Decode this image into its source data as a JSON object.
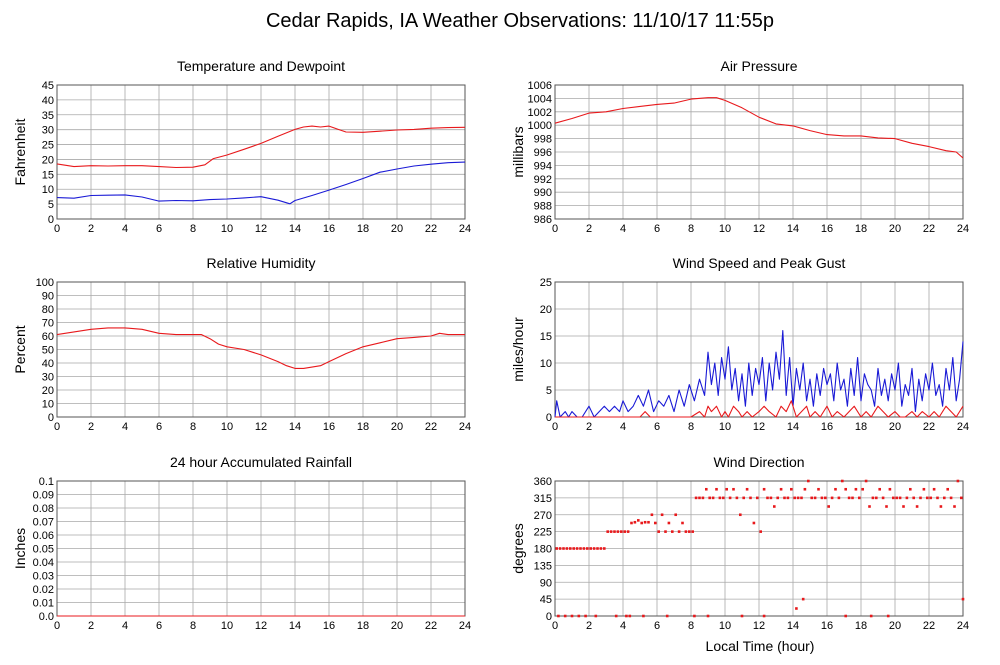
{
  "title": "Cedar Rapids, IA Weather Observations: 11/10/17 11:55p",
  "x_axis_label": "Local Time (hour)",
  "colors": {
    "red": "#e8191c",
    "blue": "#1a1ad6",
    "grid": "#a9a9a9",
    "frame": "#555555"
  },
  "chart_data": [
    {
      "type": "line",
      "title": "Temperature and Dewpoint",
      "ylabel": "Fahrenheit",
      "xlim": [
        0,
        24
      ],
      "ylim": [
        0,
        45
      ],
      "xticks": [
        0,
        2,
        4,
        6,
        8,
        10,
        12,
        14,
        16,
        18,
        20,
        22,
        24
      ],
      "yticks": [
        0,
        5,
        10,
        15,
        20,
        25,
        30,
        35,
        40,
        45
      ],
      "grid": true,
      "series": [
        {
          "color": "#e8191c",
          "x": [
            0,
            1,
            2,
            3,
            4,
            5,
            6,
            7,
            8,
            8.7,
            9.2,
            10,
            11,
            12,
            13,
            14,
            14.5,
            15,
            15.5,
            16,
            16.5,
            17,
            18,
            19,
            20,
            21,
            22,
            23,
            24
          ],
          "y": [
            18.5,
            17.6,
            17.9,
            17.8,
            17.9,
            17.9,
            17.6,
            17.3,
            17.4,
            18.2,
            20.3,
            21.5,
            23.4,
            25.4,
            27.8,
            30.1,
            30.9,
            31.2,
            30.9,
            31.2,
            30.2,
            29.2,
            29.1,
            29.5,
            29.9,
            30.1,
            30.5,
            30.7,
            30.8
          ]
        },
        {
          "color": "#1a1ad6",
          "x": [
            0,
            1,
            2,
            3,
            4,
            5,
            6,
            7,
            8,
            9,
            10,
            11,
            12,
            13,
            13.7,
            14,
            15,
            16,
            17,
            18,
            19,
            20,
            21,
            22,
            23,
            24
          ],
          "y": [
            7.2,
            7.0,
            7.9,
            8.0,
            8.1,
            7.4,
            6.0,
            6.2,
            6.1,
            6.5,
            6.7,
            7.1,
            7.5,
            6.3,
            5.1,
            6.2,
            7.9,
            9.7,
            11.6,
            13.6,
            15.7,
            16.8,
            17.8,
            18.4,
            18.9,
            19.1
          ]
        }
      ]
    },
    {
      "type": "line",
      "title": "Air Pressure",
      "ylabel": "millibars",
      "xlim": [
        0,
        24
      ],
      "ylim": [
        986,
        1006
      ],
      "xticks": [
        0,
        2,
        4,
        6,
        8,
        10,
        12,
        14,
        16,
        18,
        20,
        22,
        24
      ],
      "yticks": [
        986,
        988,
        990,
        992,
        994,
        996,
        998,
        1000,
        1002,
        1004,
        1006
      ],
      "grid": true,
      "series": [
        {
          "color": "#e8191c",
          "x": [
            0,
            1,
            2,
            3,
            4,
            5,
            6,
            7,
            8,
            9,
            9.5,
            10,
            11,
            12,
            13,
            14,
            15,
            16,
            17,
            18,
            19,
            20,
            21,
            22,
            23,
            23.6,
            24
          ],
          "y": [
            1000.3,
            1001.0,
            1001.8,
            1002.0,
            1002.5,
            1002.8,
            1003.1,
            1003.3,
            1003.9,
            1004.1,
            1004.1,
            1003.7,
            1002.6,
            1001.2,
            1000.2,
            999.9,
            999.2,
            998.6,
            998.4,
            998.4,
            998.1,
            998.0,
            997.3,
            996.8,
            996.2,
            996.0,
            995.1
          ]
        }
      ]
    },
    {
      "type": "line",
      "title": "Relative Humidity",
      "ylabel": "Percent",
      "xlim": [
        0,
        24
      ],
      "ylim": [
        0,
        100
      ],
      "xticks": [
        0,
        2,
        4,
        6,
        8,
        10,
        12,
        14,
        16,
        18,
        20,
        22,
        24
      ],
      "yticks": [
        0,
        10,
        20,
        30,
        40,
        50,
        60,
        70,
        80,
        90,
        100
      ],
      "grid": true,
      "series": [
        {
          "color": "#e8191c",
          "x": [
            0,
            1,
            2,
            3,
            4,
            5,
            6,
            7,
            8,
            8.5,
            9,
            9.5,
            10,
            11,
            12,
            13,
            13.5,
            14,
            14.5,
            15,
            15.5,
            16,
            17,
            18,
            19,
            20,
            21,
            22,
            22.5,
            23,
            24
          ],
          "y": [
            61,
            63,
            65,
            66,
            66,
            65,
            62,
            61,
            61,
            61,
            58,
            54,
            52,
            50,
            46,
            41,
            38,
            36,
            36,
            37,
            38,
            41,
            47,
            52,
            55,
            58,
            59,
            60,
            62,
            61,
            61
          ]
        }
      ]
    },
    {
      "type": "line",
      "title": "Wind Speed and Peak Gust",
      "ylabel": "miles/hour",
      "xlim": [
        0,
        24
      ],
      "ylim": [
        0,
        25
      ],
      "xticks": [
        0,
        2,
        4,
        6,
        8,
        10,
        12,
        14,
        16,
        18,
        20,
        22,
        24
      ],
      "yticks": [
        0,
        5,
        10,
        15,
        20,
        25
      ],
      "grid": true,
      "series": [
        {
          "color": "#1a1ad6",
          "x": [
            0,
            0.1,
            0.3,
            0.6,
            0.8,
            1.0,
            1.3,
            1.6,
            2.0,
            2.3,
            2.6,
            2.9,
            3.2,
            3.5,
            3.8,
            4.0,
            4.3,
            4.6,
            4.9,
            5.2,
            5.5,
            5.8,
            6.1,
            6.4,
            6.7,
            7.0,
            7.3,
            7.6,
            7.9,
            8.2,
            8.5,
            8.8,
            9.0,
            9.2,
            9.4,
            9.6,
            9.8,
            10.0,
            10.2,
            10.4,
            10.6,
            10.8,
            11.0,
            11.2,
            11.4,
            11.6,
            11.8,
            12.0,
            12.2,
            12.4,
            12.6,
            12.8,
            13.0,
            13.2,
            13.4,
            13.6,
            13.8,
            14.0,
            14.2,
            14.4,
            14.6,
            14.8,
            15.0,
            15.2,
            15.4,
            15.6,
            15.8,
            16.0,
            16.2,
            16.4,
            16.6,
            16.8,
            17.0,
            17.2,
            17.4,
            17.6,
            17.8,
            18.0,
            18.2,
            18.4,
            18.6,
            18.8,
            19.0,
            19.2,
            19.4,
            19.6,
            19.8,
            20.0,
            20.2,
            20.4,
            20.6,
            20.8,
            21.0,
            21.2,
            21.4,
            21.6,
            21.8,
            22.0,
            22.2,
            22.4,
            22.6,
            22.8,
            23.0,
            23.2,
            23.4,
            23.6,
            23.8,
            24.0
          ],
          "y": [
            0,
            3,
            0,
            1,
            0,
            1,
            0,
            0,
            2,
            0,
            1,
            2,
            1,
            2,
            1,
            3,
            1,
            2,
            4,
            2,
            5,
            1,
            3,
            2,
            4,
            1,
            5,
            2,
            6,
            3,
            7,
            4,
            12,
            6,
            10,
            4,
            11,
            7,
            13,
            5,
            9,
            3,
            8,
            2,
            10,
            4,
            9,
            6,
            11,
            3,
            10,
            5,
            12,
            7,
            16,
            4,
            11,
            2,
            9,
            5,
            10,
            3,
            7,
            2,
            8,
            4,
            9,
            6,
            8,
            3,
            10,
            5,
            7,
            2,
            9,
            4,
            11,
            3,
            8,
            6,
            5,
            2,
            9,
            4,
            7,
            3,
            8,
            5,
            10,
            2,
            6,
            4,
            9,
            1,
            7,
            3,
            8,
            5,
            10,
            4,
            6,
            2,
            9,
            5,
            11,
            3,
            7,
            14
          ]
        },
        {
          "color": "#e8191c",
          "x": [
            0,
            5.0,
            5.3,
            5.6,
            6.0,
            6.5,
            7.0,
            7.5,
            8.0,
            8.5,
            8.8,
            9.0,
            9.2,
            9.5,
            9.8,
            10.0,
            10.2,
            10.5,
            10.8,
            11.0,
            11.3,
            11.6,
            12.0,
            12.3,
            12.6,
            13.0,
            13.3,
            13.6,
            13.9,
            14.2,
            14.5,
            14.8,
            15.0,
            15.3,
            15.6,
            16.0,
            16.3,
            16.6,
            17.0,
            17.3,
            17.6,
            18.0,
            18.3,
            18.6,
            19.0,
            19.3,
            19.6,
            20.0,
            20.3,
            20.6,
            21.0,
            21.3,
            21.6,
            22.0,
            22.3,
            22.6,
            23.0,
            23.3,
            23.6,
            24.0
          ],
          "y": [
            0,
            0,
            1,
            0,
            0,
            0,
            0,
            0,
            0,
            1,
            0,
            2,
            1,
            2,
            0,
            1,
            0,
            2,
            1,
            0,
            1,
            0,
            1,
            2,
            1,
            0,
            2,
            1,
            3,
            0,
            1,
            2,
            0,
            1,
            0,
            2,
            0,
            1,
            0,
            1,
            2,
            0,
            1,
            0,
            2,
            1,
            0,
            1,
            0,
            0,
            1,
            0,
            1,
            0,
            1,
            0,
            2,
            1,
            0,
            2
          ]
        }
      ]
    },
    {
      "type": "line",
      "title": "24 hour Accumulated Rainfall",
      "ylabel": "Inches",
      "xlim": [
        0,
        24
      ],
      "ylim": [
        0,
        0.1
      ],
      "xticks": [
        0,
        2,
        4,
        6,
        8,
        10,
        12,
        14,
        16,
        18,
        20,
        22,
        24
      ],
      "yticks": [
        "0.0",
        "0.01",
        "0.02",
        "0.03",
        "0.04",
        "0.05",
        "0.06",
        "0.07",
        "0.08",
        "0.09",
        "0.1"
      ],
      "grid": true,
      "series": [
        {
          "color": "#e8191c",
          "x": [
            0,
            24
          ],
          "y": [
            0,
            0
          ]
        }
      ]
    },
    {
      "type": "scatter",
      "title": "Wind Direction",
      "ylabel": "degrees",
      "xlabel": "Local Time (hour)",
      "xlim": [
        0,
        24
      ],
      "ylim": [
        0,
        360
      ],
      "xticks": [
        0,
        2,
        4,
        6,
        8,
        10,
        12,
        14,
        16,
        18,
        20,
        22,
        24
      ],
      "yticks": [
        0,
        45,
        90,
        135,
        180,
        225,
        270,
        315,
        360
      ],
      "grid": true,
      "series": [
        {
          "color": "#e8191c",
          "x": [
            0.1,
            0.3,
            0.5,
            0.7,
            0.9,
            1.1,
            1.3,
            1.5,
            1.7,
            1.9,
            2.1,
            2.3,
            2.5,
            2.7,
            2.9,
            3.1,
            3.3,
            3.5,
            3.7,
            3.9,
            4.1,
            4.3,
            4.5,
            4.7,
            4.9,
            5.1,
            5.3,
            5.5,
            5.7,
            5.9,
            6.1,
            6.3,
            6.5,
            6.7,
            6.9,
            7.1,
            7.3,
            7.5,
            7.7,
            7.9,
            8.1,
            8.3,
            8.5,
            8.7,
            8.9,
            9.1,
            9.3,
            9.5,
            9.7,
            9.9,
            10.1,
            10.3,
            10.5,
            10.7,
            10.9,
            11.1,
            11.3,
            11.5,
            11.7,
            11.9,
            12.1,
            12.3,
            12.5,
            12.7,
            12.9,
            13.1,
            13.3,
            13.5,
            13.7,
            13.9,
            14.1,
            14.3,
            14.5,
            14.7,
            14.9,
            15.1,
            15.3,
            15.5,
            15.7,
            15.9,
            16.1,
            16.3,
            16.5,
            16.7,
            16.9,
            17.1,
            17.3,
            17.5,
            17.7,
            17.9,
            18.1,
            18.3,
            18.5,
            18.7,
            18.9,
            19.1,
            19.3,
            19.5,
            19.7,
            19.9,
            20.1,
            20.3,
            20.5,
            20.7,
            20.9,
            21.1,
            21.3,
            21.5,
            21.7,
            21.9,
            22.1,
            22.3,
            22.5,
            22.7,
            22.9,
            23.1,
            23.3,
            23.5,
            23.7,
            23.9,
            0.2,
            0.6,
            1.0,
            1.4,
            1.8,
            2.4,
            3.6,
            4.2,
            4.4,
            5.2,
            6.6,
            8.2,
            9.0,
            11.0,
            12.3,
            14.2,
            14.6,
            17.1,
            18.6,
            19.6,
            24.0
          ],
          "y": [
            180,
            180,
            180,
            180,
            180,
            180,
            180,
            180,
            180,
            180,
            180,
            180,
            180,
            180,
            180,
            225,
            225,
            225,
            225,
            225,
            225,
            225,
            248,
            250,
            255,
            248,
            250,
            250,
            270,
            248,
            225,
            270,
            225,
            248,
            225,
            270,
            225,
            248,
            225,
            225,
            225,
            315,
            315,
            315,
            338,
            315,
            315,
            338,
            315,
            315,
            338,
            315,
            338,
            315,
            270,
            315,
            338,
            315,
            248,
            315,
            225,
            338,
            315,
            315,
            292,
            315,
            338,
            315,
            315,
            338,
            315,
            315,
            315,
            338,
            360,
            315,
            315,
            338,
            315,
            315,
            292,
            315,
            338,
            315,
            360,
            338,
            315,
            315,
            338,
            315,
            338,
            360,
            292,
            315,
            315,
            338,
            315,
            292,
            338,
            315,
            315,
            315,
            292,
            315,
            338,
            315,
            292,
            315,
            338,
            315,
            315,
            338,
            315,
            292,
            315,
            338,
            315,
            292,
            360,
            315,
            0,
            0,
            0,
            0,
            0,
            0,
            0,
            0,
            0,
            0,
            0,
            0,
            0,
            0,
            0,
            20,
            45,
            0,
            0,
            0,
            45
          ]
        }
      ]
    }
  ]
}
